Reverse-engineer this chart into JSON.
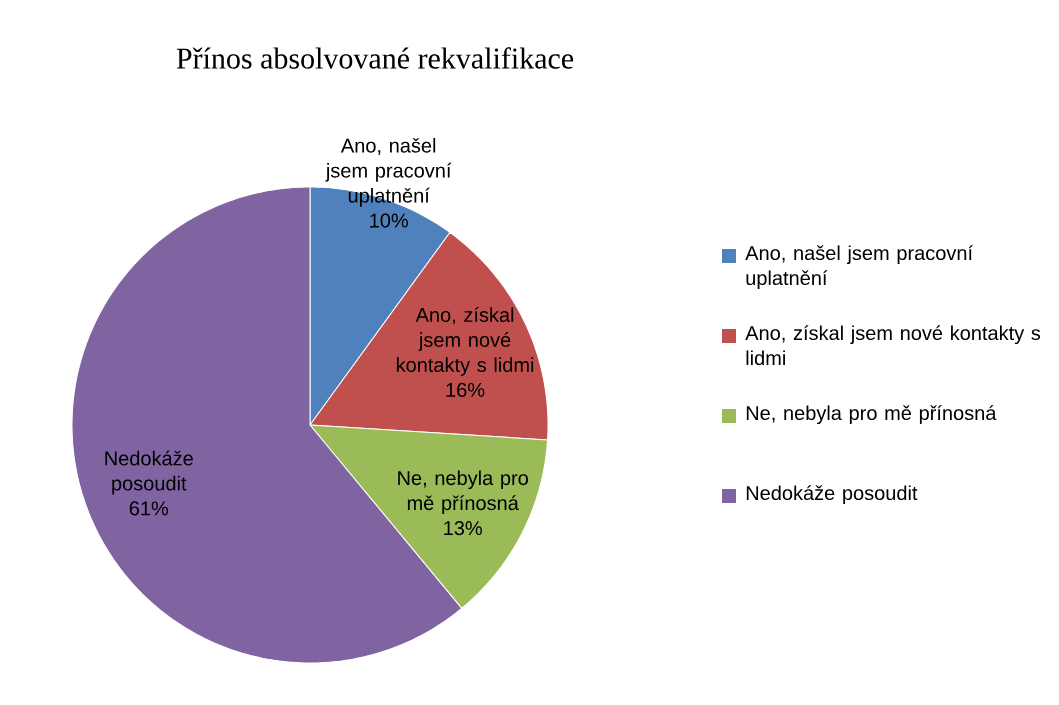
{
  "chart_data": {
    "type": "pie",
    "title": "Přínos absolvované rekvalifikace",
    "categories": [
      "Ano, našel jsem pracovní uplatnění",
      "Ano, získal jsem nové kontakty s lidmi",
      "Ne, nebyla pro mě přínosná",
      "Nedokáže posoudit"
    ],
    "values": [
      10,
      16,
      13,
      61
    ],
    "colors": [
      "#4f81bd",
      "#c0504d",
      "#9bbb59",
      "#8064a2"
    ],
    "value_labels": [
      "10%",
      "16%",
      "13%",
      "61%"
    ],
    "legend": "right"
  }
}
